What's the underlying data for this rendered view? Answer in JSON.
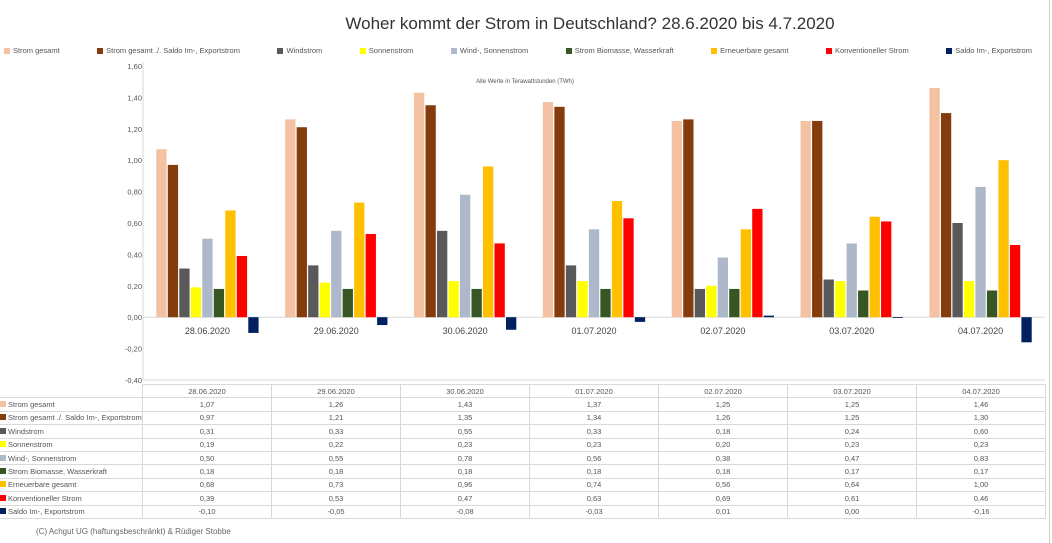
{
  "chart_data": {
    "type": "bar",
    "title": "Woher kommt der Strom in Deutschland? 28.6.2020 bis 4.7.2020",
    "subtitle": "Alle Werte in Terawattstunden (TWh)",
    "categories": [
      "28.06.2020",
      "29.06.2020",
      "30.06.2020",
      "01.07.2020",
      "02.07.2020",
      "03.07.2020",
      "04.07.2020"
    ],
    "ylim": [
      -0.4,
      1.6
    ],
    "yticks": [
      "1,60",
      "1,40",
      "1,20",
      "1,00",
      "0,80",
      "0,60",
      "0,40",
      "0,20",
      "0,00",
      "-0,20",
      "-0,40"
    ],
    "ytick_values": [
      1.6,
      1.4,
      1.2,
      1.0,
      0.8,
      0.6,
      0.4,
      0.2,
      0.0,
      -0.2,
      -0.4
    ],
    "legend_position": "top",
    "series": [
      {
        "name": "Strom gesamt",
        "color": "#F4C1A2",
        "values": [
          1.07,
          1.26,
          1.43,
          1.37,
          1.25,
          1.25,
          1.46
        ],
        "labels": [
          "1,07",
          "1,26",
          "1,43",
          "1,37",
          "1,25",
          "1,25",
          "1,46"
        ]
      },
      {
        "name": "Strom gesamt ./. Saldo Im-, Exportstrom",
        "color": "#843C0C",
        "values": [
          0.97,
          1.21,
          1.35,
          1.34,
          1.26,
          1.25,
          1.3
        ],
        "labels": [
          "0,97",
          "1,21",
          "1,35",
          "1,34",
          "1,26",
          "1,25",
          "1,30"
        ]
      },
      {
        "name": "Windstrom",
        "color": "#595959",
        "values": [
          0.31,
          0.33,
          0.55,
          0.33,
          0.18,
          0.24,
          0.6
        ],
        "labels": [
          "0,31",
          "0,33",
          "0,55",
          "0,33",
          "0,18",
          "0,24",
          "0,60"
        ]
      },
      {
        "name": "Sonnenstrom",
        "color": "#FFFF00",
        "values": [
          0.19,
          0.22,
          0.23,
          0.23,
          0.2,
          0.23,
          0.23
        ],
        "labels": [
          "0,19",
          "0,22",
          "0,23",
          "0,23",
          "0,20",
          "0,23",
          "0,23"
        ]
      },
      {
        "name": "Wind-, Sonnenstrom",
        "color": "#ADB9CA",
        "values": [
          0.5,
          0.55,
          0.78,
          0.56,
          0.38,
          0.47,
          0.83
        ],
        "labels": [
          "0,50",
          "0,55",
          "0,78",
          "0,56",
          "0,38",
          "0,47",
          "0,83"
        ]
      },
      {
        "name": "Strom Biomasse, Wasserkraft",
        "color": "#375623",
        "values": [
          0.18,
          0.18,
          0.18,
          0.18,
          0.18,
          0.17,
          0.17
        ],
        "labels": [
          "0,18",
          "0,18",
          "0,18",
          "0,18",
          "0,18",
          "0,17",
          "0,17"
        ]
      },
      {
        "name": "Erneuerbare gesamt",
        "color": "#FFC000",
        "values": [
          0.68,
          0.73,
          0.96,
          0.74,
          0.56,
          0.64,
          1.0
        ],
        "labels": [
          "0,68",
          "0,73",
          "0,96",
          "0,74",
          "0,56",
          "0,64",
          "1,00"
        ]
      },
      {
        "name": "Konventioneller Strom",
        "color": "#FF0000",
        "values": [
          0.39,
          0.53,
          0.47,
          0.63,
          0.69,
          0.61,
          0.46
        ],
        "labels": [
          "0,39",
          "0,53",
          "0,47",
          "0,63",
          "0,69",
          "0,61",
          "0,46"
        ]
      },
      {
        "name": "Saldo Im-, Exportstrom",
        "color": "#002060",
        "values": [
          -0.1,
          -0.05,
          -0.08,
          -0.03,
          0.01,
          0.0,
          -0.16
        ],
        "labels": [
          "-0,10",
          "-0,05",
          "-0,08",
          "-0,03",
          "0,01",
          "0,00",
          "-0,16"
        ]
      }
    ]
  },
  "footer": "(C) Achgut UG (haftungsbeschränkt) & Rüdiger Stobbe"
}
